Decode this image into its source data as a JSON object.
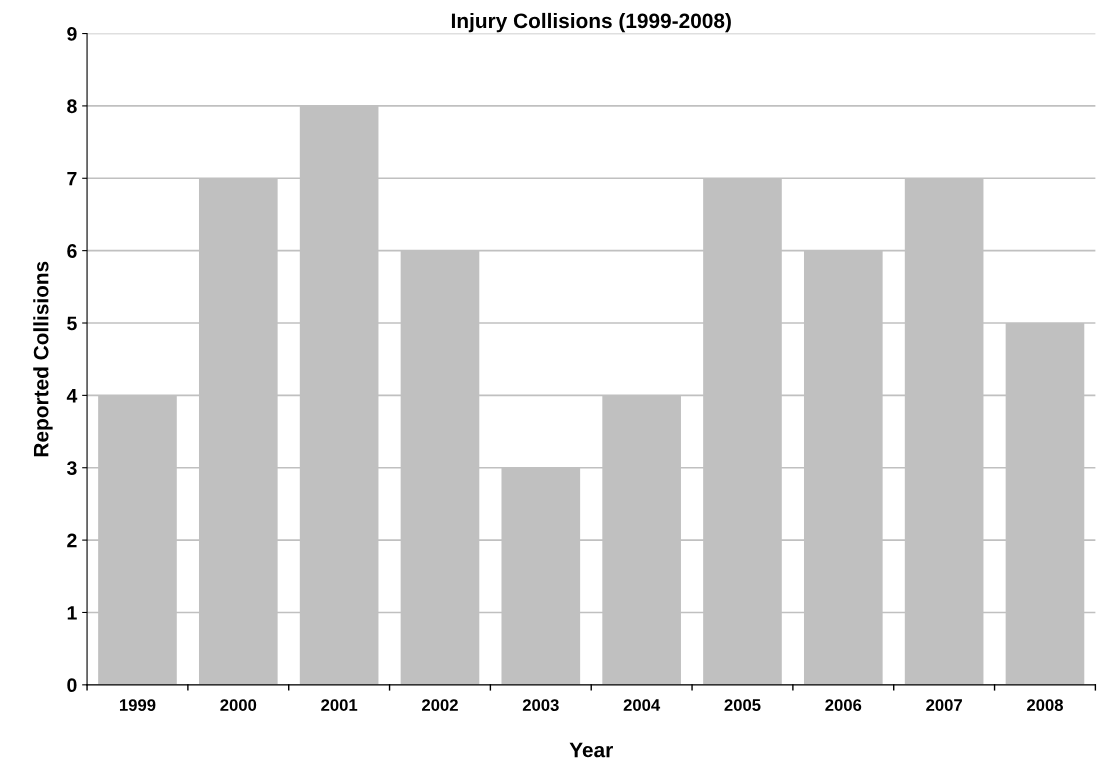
{
  "chart_data": {
    "type": "bar",
    "title": "Injury Collisions (1999-2008)",
    "xlabel": "Year",
    "ylabel": "Reported Collisions",
    "categories": [
      "1999",
      "2000",
      "2001",
      "2002",
      "2003",
      "2004",
      "2005",
      "2006",
      "2007",
      "2008"
    ],
    "values": [
      4,
      7,
      8,
      6,
      3,
      4,
      7,
      6,
      7,
      5
    ],
    "color": "#c0c0c0",
    "ylim": [
      0,
      9
    ],
    "yticks": [
      0,
      1,
      2,
      3,
      4,
      5,
      6,
      7,
      8,
      9
    ],
    "grid": "y",
    "legend": false
  }
}
